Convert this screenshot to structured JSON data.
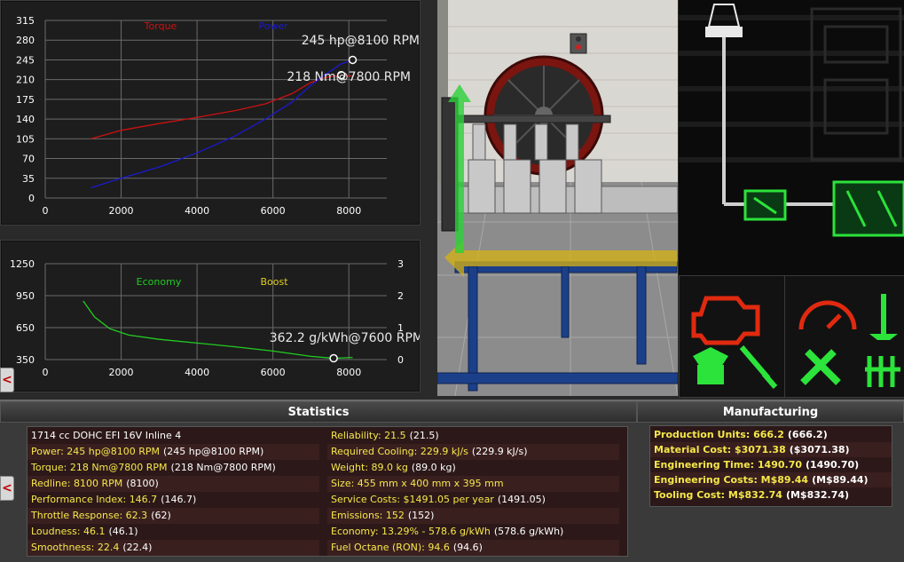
{
  "colors": {
    "torque": "#cc1111",
    "power": "#1a1ad0",
    "economy": "#22cc22",
    "boost": "#e0cc22",
    "stat_label": "#f6e84a",
    "warning_red": "#e02a10",
    "indicator_green": "#2be33a"
  },
  "chart_data": [
    {
      "type": "line",
      "title": "",
      "legend": [
        "Torque",
        "Power"
      ],
      "x_ticks": [
        "0",
        "2000",
        "4000",
        "6000",
        "8000"
      ],
      "y_ticks": [
        "0",
        "35",
        "70",
        "105",
        "140",
        "175",
        "210",
        "245",
        "280",
        "315"
      ],
      "xlim": [
        0,
        9000
      ],
      "ylim": [
        0,
        315
      ],
      "grid": true,
      "series": [
        {
          "name": "Torque",
          "x": [
            1200,
            2000,
            3000,
            4000,
            5000,
            5800,
            6500,
            7000,
            7400,
            7800,
            8100
          ],
          "values": [
            105,
            120,
            132,
            143,
            155,
            167,
            185,
            205,
            214,
            218,
            216
          ]
        },
        {
          "name": "Power",
          "x": [
            1200,
            2000,
            3000,
            4000,
            5000,
            5800,
            6500,
            7000,
            7400,
            7800,
            8100
          ],
          "values": [
            18,
            35,
            55,
            80,
            110,
            140,
            170,
            200,
            220,
            238,
            245
          ]
        }
      ],
      "annotations": [
        "245 hp@8100 RPM",
        "218 Nm@7800 RPM"
      ]
    },
    {
      "type": "line",
      "title": "",
      "legend": [
        "Economy",
        "Boost"
      ],
      "x_ticks": [
        "0",
        "2000",
        "4000",
        "6000",
        "8000"
      ],
      "y_ticks": [
        "350",
        "650",
        "950",
        "1250"
      ],
      "y2_ticks": [
        "0",
        "1",
        "2",
        "3"
      ],
      "xlim": [
        0,
        9000
      ],
      "ylim": [
        350,
        1250
      ],
      "y2lim": [
        0,
        3
      ],
      "grid": true,
      "series": [
        {
          "name": "Economy",
          "x": [
            1000,
            1300,
            1700,
            2200,
            3000,
            4000,
            5000,
            6000,
            7000,
            7600,
            8100
          ],
          "values": [
            900,
            750,
            640,
            580,
            540,
            505,
            470,
            430,
            380,
            362,
            370
          ]
        }
      ],
      "annotations": [
        "362.2 g/kWh@7600 RPM"
      ]
    }
  ],
  "side_tabs": {
    "arrow": "<"
  },
  "statistics": {
    "title": "Statistics",
    "left": [
      {
        "label": "1714 cc DOHC EFI 16V Inline 4",
        "value": ""
      },
      {
        "label": "Power: 245 hp@8100 RPM",
        "value": "(245 hp@8100 RPM)"
      },
      {
        "label": "Torque: 218 Nm@7800 RPM",
        "value": "(218 Nm@7800 RPM)"
      },
      {
        "label": "Redline: 8100 RPM",
        "value": "(8100)"
      },
      {
        "label": "Performance Index: 146.7",
        "value": "(146.7)"
      },
      {
        "label": "Throttle Response: 62.3",
        "value": "(62)"
      },
      {
        "label": "Loudness: 46.1",
        "value": "(46.1)"
      },
      {
        "label": "Smoothness: 22.4",
        "value": "(22.4)"
      }
    ],
    "right": [
      {
        "label": "Reliability: 21.5",
        "value": "(21.5)"
      },
      {
        "label": "Required Cooling: 229.9 kJ/s",
        "value": "(229.9 kJ/s)"
      },
      {
        "label": "Weight: 89.0 kg",
        "value": "(89.0 kg)"
      },
      {
        "label": "Size: 455 mm x 400 mm x 395 mm",
        "value": ""
      },
      {
        "label": "Service Costs: $1491.05 per year",
        "value": "(1491.05)"
      },
      {
        "label": "Emissions: 152",
        "value": "(152)"
      },
      {
        "label": "Economy: 13.29% - 578.6 g/kWh",
        "value": "(578.6 g/kWh)"
      },
      {
        "label": "Fuel Octane (RON): 94.6",
        "value": "(94.6)"
      }
    ]
  },
  "manufacturing": {
    "title": "Manufacturing",
    "rows": [
      {
        "label": "Production Units: 666.2",
        "value": "(666.2)"
      },
      {
        "label": "Material Cost: $3071.38",
        "value": "($3071.38)"
      },
      {
        "label": "Engineering Time: 1490.70",
        "value": "(1490.70)"
      },
      {
        "label": "Engineering Costs: M$89.44",
        "value": "(M$89.44)"
      },
      {
        "label": "Tooling Cost: M$832.74",
        "value": "(M$832.74)"
      }
    ]
  }
}
